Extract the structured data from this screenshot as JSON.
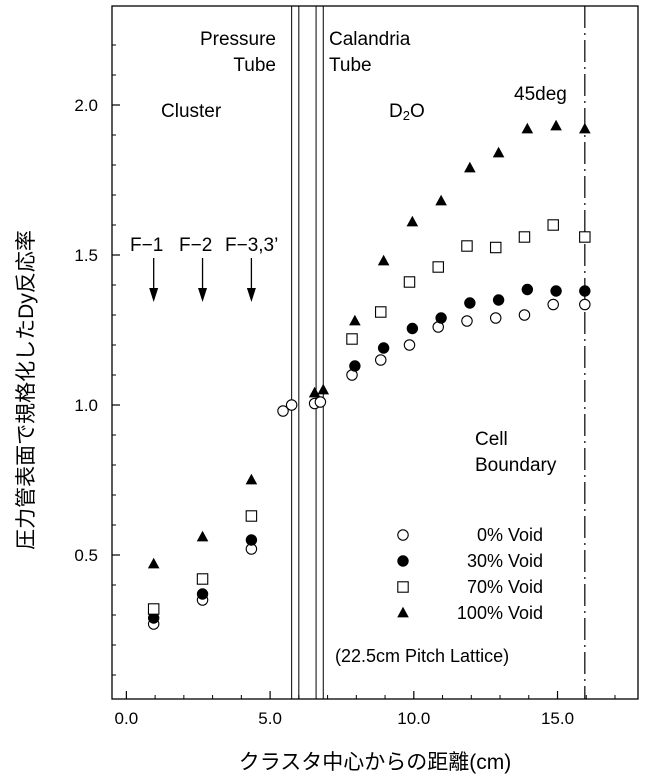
{
  "chart_data": {
    "type": "scatter",
    "xlabel": "クラスタ中心からの距離(cm)",
    "ylabel": "圧力管表面で規格化したDy反応率",
    "xlim": [
      -0.5,
      17.8
    ],
    "ylim": [
      0.02,
      2.33
    ],
    "x_ticks": [
      "0.0",
      "5.0",
      "10.0",
      "15.0"
    ],
    "x_tick_values": [
      0,
      5,
      10,
      15
    ],
    "y_ticks": [
      "0.5",
      "1.0",
      "1.5",
      "2.0"
    ],
    "y_tick_values": [
      0.5,
      1.0,
      1.5,
      2.0
    ],
    "grid": false,
    "legend_position": "lower-right",
    "vertical_lines": {
      "pressure_tube": [
        5.75,
        6.0
      ],
      "calandria_tube": [
        6.6,
        6.85
      ],
      "cell_boundary": 15.95
    },
    "annotations": {
      "pressure_tube_1": "Pressure",
      "pressure_tube_2": "Tube",
      "calandria_tube_1": "Calandria",
      "calandria_tube_2": "Tube",
      "cluster": "Cluster",
      "d2o_main": "D",
      "d2o_sub": "2",
      "d2o_tail": "O",
      "angle": "45deg",
      "cell_boundary_1": "Cell",
      "cell_boundary_2": "Boundary",
      "f1": "F−1",
      "f2": "F−2",
      "f3": "F−3,3’",
      "lattice_note": "(22.5cm Pitch Lattice)"
    },
    "arrows_x": [
      0.95,
      2.65,
      4.35
    ],
    "series": [
      {
        "name": "0% Void",
        "marker": "open-circle",
        "x": [
          0.95,
          2.65,
          4.35,
          5.45,
          5.75,
          6.55,
          6.75,
          7.85,
          8.85,
          9.85,
          10.85,
          11.85,
          12.85,
          13.85,
          14.85,
          15.95
        ],
        "y": [
          0.27,
          0.35,
          0.52,
          0.98,
          1.0,
          1.005,
          1.01,
          1.1,
          1.15,
          1.2,
          1.26,
          1.28,
          1.29,
          1.3,
          1.335,
          1.335
        ]
      },
      {
        "name": "30% Void",
        "marker": "filled-circle",
        "x": [
          0.95,
          2.65,
          4.35,
          7.95,
          8.95,
          9.95,
          10.95,
          11.95,
          12.95,
          13.95,
          14.95,
          15.95
        ],
        "y": [
          0.29,
          0.37,
          0.55,
          1.13,
          1.19,
          1.255,
          1.29,
          1.34,
          1.35,
          1.385,
          1.38,
          1.38
        ]
      },
      {
        "name": "70% Void",
        "marker": "open-square",
        "x": [
          0.95,
          2.65,
          4.35,
          7.85,
          8.85,
          9.85,
          10.85,
          11.85,
          12.85,
          13.85,
          14.85,
          15.95
        ],
        "y": [
          0.32,
          0.42,
          0.63,
          1.22,
          1.31,
          1.41,
          1.46,
          1.53,
          1.525,
          1.56,
          1.6,
          1.56
        ]
      },
      {
        "name": "100% Void",
        "marker": "filled-triangle",
        "x": [
          0.95,
          2.65,
          4.35,
          6.55,
          6.85,
          7.95,
          8.95,
          9.95,
          10.95,
          11.95,
          12.95,
          13.95,
          14.95,
          15.95
        ],
        "y": [
          0.47,
          0.56,
          0.75,
          1.04,
          1.05,
          1.28,
          1.48,
          1.61,
          1.68,
          1.79,
          1.84,
          1.92,
          1.93,
          1.92
        ]
      }
    ]
  }
}
